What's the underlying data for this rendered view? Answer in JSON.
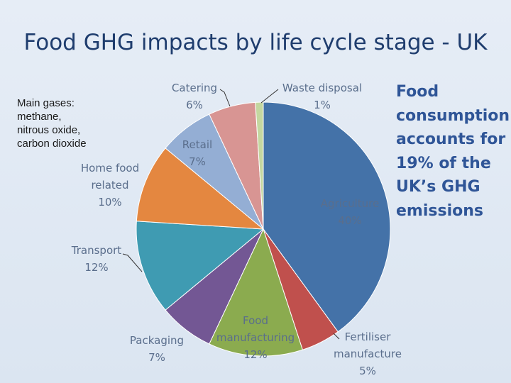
{
  "slide": {
    "title": "Food GHG impacts by life cycle stage - UK",
    "note": "Main gases:\nmethane,\nnitrous oxide,\ncarbon dioxide",
    "callout": "Food\nconsumption\naccounts for\n19% of the\nUK’s GHG\nemissions"
  },
  "chart_data": {
    "type": "pie",
    "title": "Food GHG impacts by life cycle stage - UK",
    "unit": "%",
    "slices": [
      {
        "label": "Agriculture",
        "value": 40,
        "color": "#4472a8",
        "label_text": [
          "Agriculture",
          "40%"
        ]
      },
      {
        "label": "Fertiliser manufacture",
        "value": 5,
        "color": "#c0504d",
        "label_text": [
          "Fertiliser",
          "manufacture",
          "5%"
        ]
      },
      {
        "label": "Food manufacturing",
        "value": 12,
        "color": "#8bab4f",
        "label_text": [
          "Food",
          "manufacturing",
          "12%"
        ]
      },
      {
        "label": "Packaging",
        "value": 7,
        "color": "#735794",
        "label_text": [
          "Packaging",
          "7%"
        ]
      },
      {
        "label": "Transport",
        "value": 12,
        "color": "#3f9bb2",
        "label_text": [
          "Transport",
          "12%"
        ]
      },
      {
        "label": "Home food related",
        "value": 10,
        "color": "#e48740",
        "label_text": [
          "Home food",
          "related",
          "10%"
        ]
      },
      {
        "label": "Retail",
        "value": 7,
        "color": "#94aed4",
        "label_text": [
          "Retail",
          "7%"
        ]
      },
      {
        "label": "Catering",
        "value": 6,
        "color": "#d89593",
        "label_text": [
          "Catering",
          "6%"
        ]
      },
      {
        "label": "Waste disposal",
        "value": 1,
        "color": "#c4d7a0",
        "label_text": [
          "Waste disposal",
          "1%"
        ]
      }
    ]
  }
}
